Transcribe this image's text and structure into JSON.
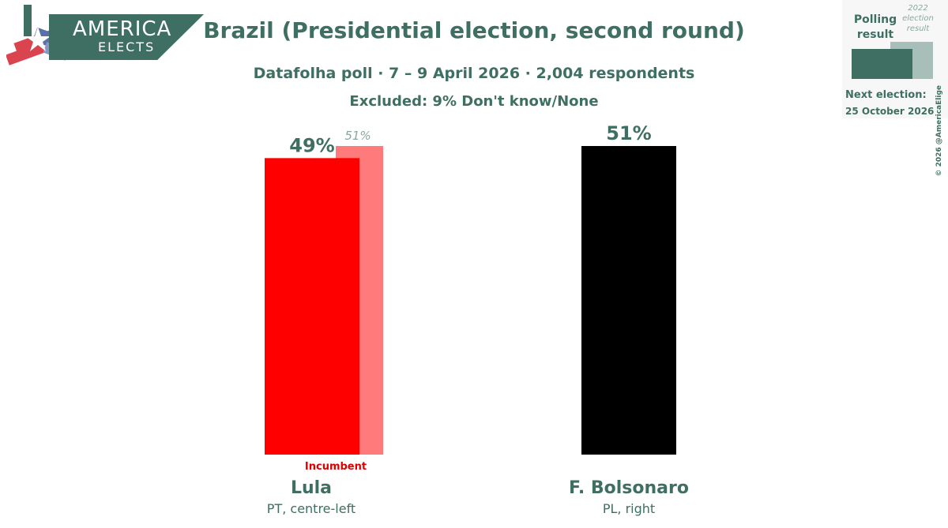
{
  "logo": {
    "line1": "AMERICA",
    "line2": "ELECTS",
    "colors": {
      "banner": "#3e6f62",
      "red": "#d9444f",
      "blue": "#5b6fa8"
    }
  },
  "header": {
    "title": "Brazil (Presidential election, second round)",
    "subtitle": "Datafolha poll · 7 – 9 April 2026 · 2,004 respondents",
    "excluded": "Excluded: 9% Don't know/None"
  },
  "legend": {
    "polling_line1": "Polling",
    "polling_line2": "result",
    "prev_line1": "2022",
    "prev_line2": "election",
    "prev_line3": "result",
    "next_label": "Next election:",
    "next_date": "25 October 2026",
    "copyright": "© 2026 @AmericaElige"
  },
  "chart_data": {
    "type": "bar",
    "categories": [
      "Lula",
      "F. Bolsonaro"
    ],
    "parties": [
      "PT, centre-left",
      "PL, right"
    ],
    "series": [
      {
        "name": "Polling result",
        "values": [
          49,
          51
        ],
        "labels": [
          "49%",
          "51%"
        ]
      },
      {
        "name": "2022 election result",
        "values": [
          51,
          null
        ],
        "labels": [
          "51%",
          ""
        ]
      }
    ],
    "ylim": [
      0,
      51
    ],
    "colors": {
      "Lula": "#ff0000",
      "Lula_prev": "#ff7a7a",
      "F. Bolsonaro": "#000000"
    },
    "annotations": [
      {
        "category": "Lula",
        "text": "Incumbent"
      }
    ]
  }
}
